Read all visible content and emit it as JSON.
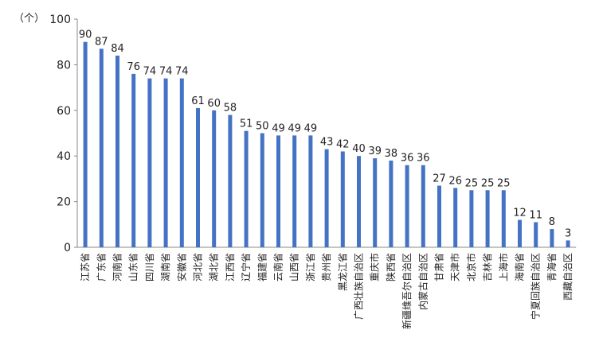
{
  "chart_data": {
    "type": "bar",
    "y_unit_label": "（个）",
    "categories": [
      "江苏省",
      "广东省",
      "河南省",
      "山东省",
      "四川省",
      "湖南省",
      "安徽省",
      "河北省",
      "湖北省",
      "江西省",
      "辽宁省",
      "福建省",
      "云南省",
      "山西省",
      "浙江省",
      "贵州省",
      "黑龙江省",
      "广西壮族自治区",
      "重庆市",
      "陕西省",
      "新疆维吾尔自治区",
      "内蒙古自治区",
      "甘肃省",
      "天津市",
      "北京市",
      "吉林省",
      "上海市",
      "海南省",
      "宁夏回族自治区",
      "青海省",
      "西藏自治区"
    ],
    "values": [
      90,
      87,
      84,
      76,
      74,
      74,
      74,
      61,
      60,
      58,
      51,
      50,
      49,
      49,
      49,
      43,
      42,
      40,
      39,
      38,
      36,
      36,
      27,
      26,
      25,
      25,
      25,
      12,
      11,
      8,
      3
    ],
    "ylim": [
      0,
      100
    ],
    "yticks": [
      0,
      20,
      40,
      60,
      80,
      100
    ],
    "grid": false,
    "legend": "none",
    "bar_color": "#4472C4"
  }
}
